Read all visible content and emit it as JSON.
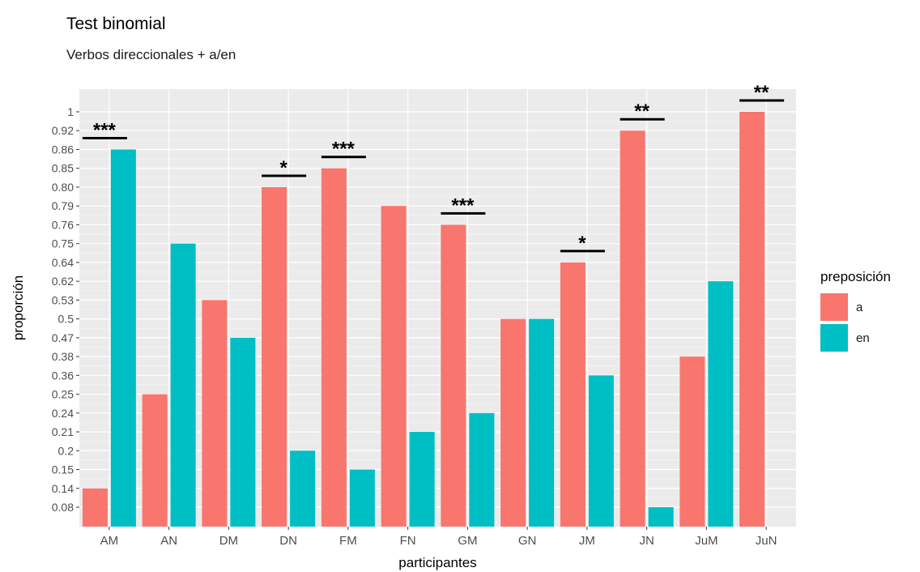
{
  "chart_data": {
    "type": "bar",
    "title": "Test binomial",
    "subtitle": "Verbos direccionales + a/en",
    "xlabel": "participantes",
    "ylabel": "proporción",
    "categories": [
      "AM",
      "AN",
      "DM",
      "DN",
      "FM",
      "FN",
      "GM",
      "GN",
      "JM",
      "JN",
      "JuM",
      "JuN"
    ],
    "y_tick_labels": [
      "0.08",
      "0.14",
      "0.15",
      "0.2",
      "0.21",
      "0.24",
      "0.25",
      "0.36",
      "0.38",
      "0.47",
      "0.5",
      "0.53",
      "0.62",
      "0.64",
      "0.75",
      "0.76",
      "0.79",
      "0.80",
      "0.85",
      "0.86",
      "0.92",
      "1"
    ],
    "series": [
      {
        "name": "a",
        "color": "#F8766D",
        "values": [
          "0.14",
          "0.25",
          "0.53",
          "0.80",
          "0.85",
          "0.79",
          "0.76",
          "0.5",
          "0.64",
          "0.92",
          "0.38",
          "1"
        ]
      },
      {
        "name": "en",
        "color": "#00BFC4",
        "values": [
          "0.86",
          "0.75",
          "0.47",
          "0.2",
          "0.15",
          "0.21",
          "0.24",
          "0.5",
          "0.36",
          "0.08",
          "0.62",
          null
        ]
      }
    ],
    "annotations": [
      {
        "category": "AM",
        "label": "***",
        "over": "en"
      },
      {
        "category": "DN",
        "label": "*",
        "over": "a"
      },
      {
        "category": "FM",
        "label": "***",
        "over": "a"
      },
      {
        "category": "GM",
        "label": "***",
        "over": "a"
      },
      {
        "category": "JM",
        "label": "*",
        "over": "a"
      },
      {
        "category": "JN",
        "label": "**",
        "over": "a"
      },
      {
        "category": "JuN",
        "label": "**",
        "over": "a"
      }
    ],
    "legend": {
      "title": "preposición",
      "position": "right"
    },
    "grid": true,
    "panel_background": "#EBEBEB"
  }
}
